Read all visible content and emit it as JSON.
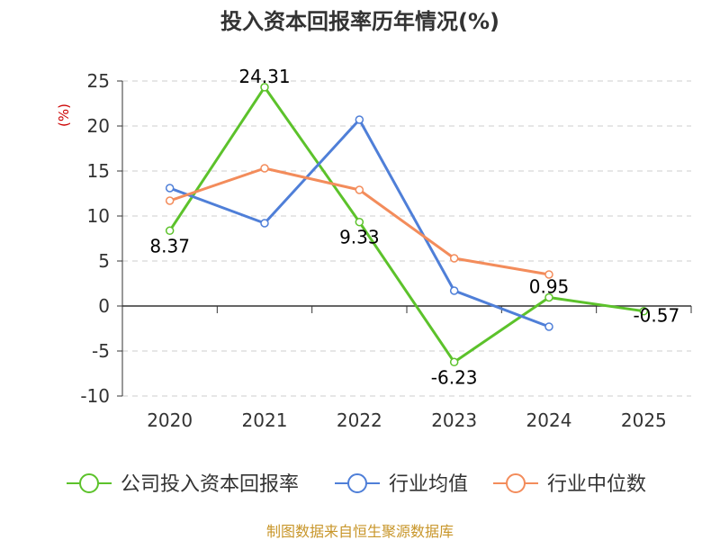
{
  "chart_data": {
    "type": "line",
    "title": "投入资本回报率历年情况(%)",
    "unit_label": "(%)",
    "categories": [
      "2020",
      "2021",
      "2022",
      "2023",
      "2024",
      "2025"
    ],
    "ylim": [
      -10,
      25
    ],
    "yticks": [
      25,
      20,
      15,
      10,
      5,
      0,
      -5,
      -10
    ],
    "grid": true,
    "legend_position": "bottom",
    "series": [
      {
        "name": "公司投入资本回报率",
        "color": "#5cc22b",
        "values": [
          8.37,
          24.31,
          9.33,
          -6.23,
          0.95,
          -0.57
        ],
        "data_labels": [
          "8.37",
          "24.31",
          "9.33",
          "-6.23",
          "0.95",
          "-0.57"
        ]
      },
      {
        "name": "行业均值",
        "color": "#4f7fd8",
        "values": [
          13.1,
          9.2,
          20.7,
          1.7,
          -2.3,
          null
        ]
      },
      {
        "name": "行业中位数",
        "color": "#f38c5b",
        "values": [
          11.7,
          15.3,
          12.9,
          5.3,
          3.5,
          null
        ]
      }
    ],
    "source": "制图数据来自恒生聚源数据库"
  }
}
